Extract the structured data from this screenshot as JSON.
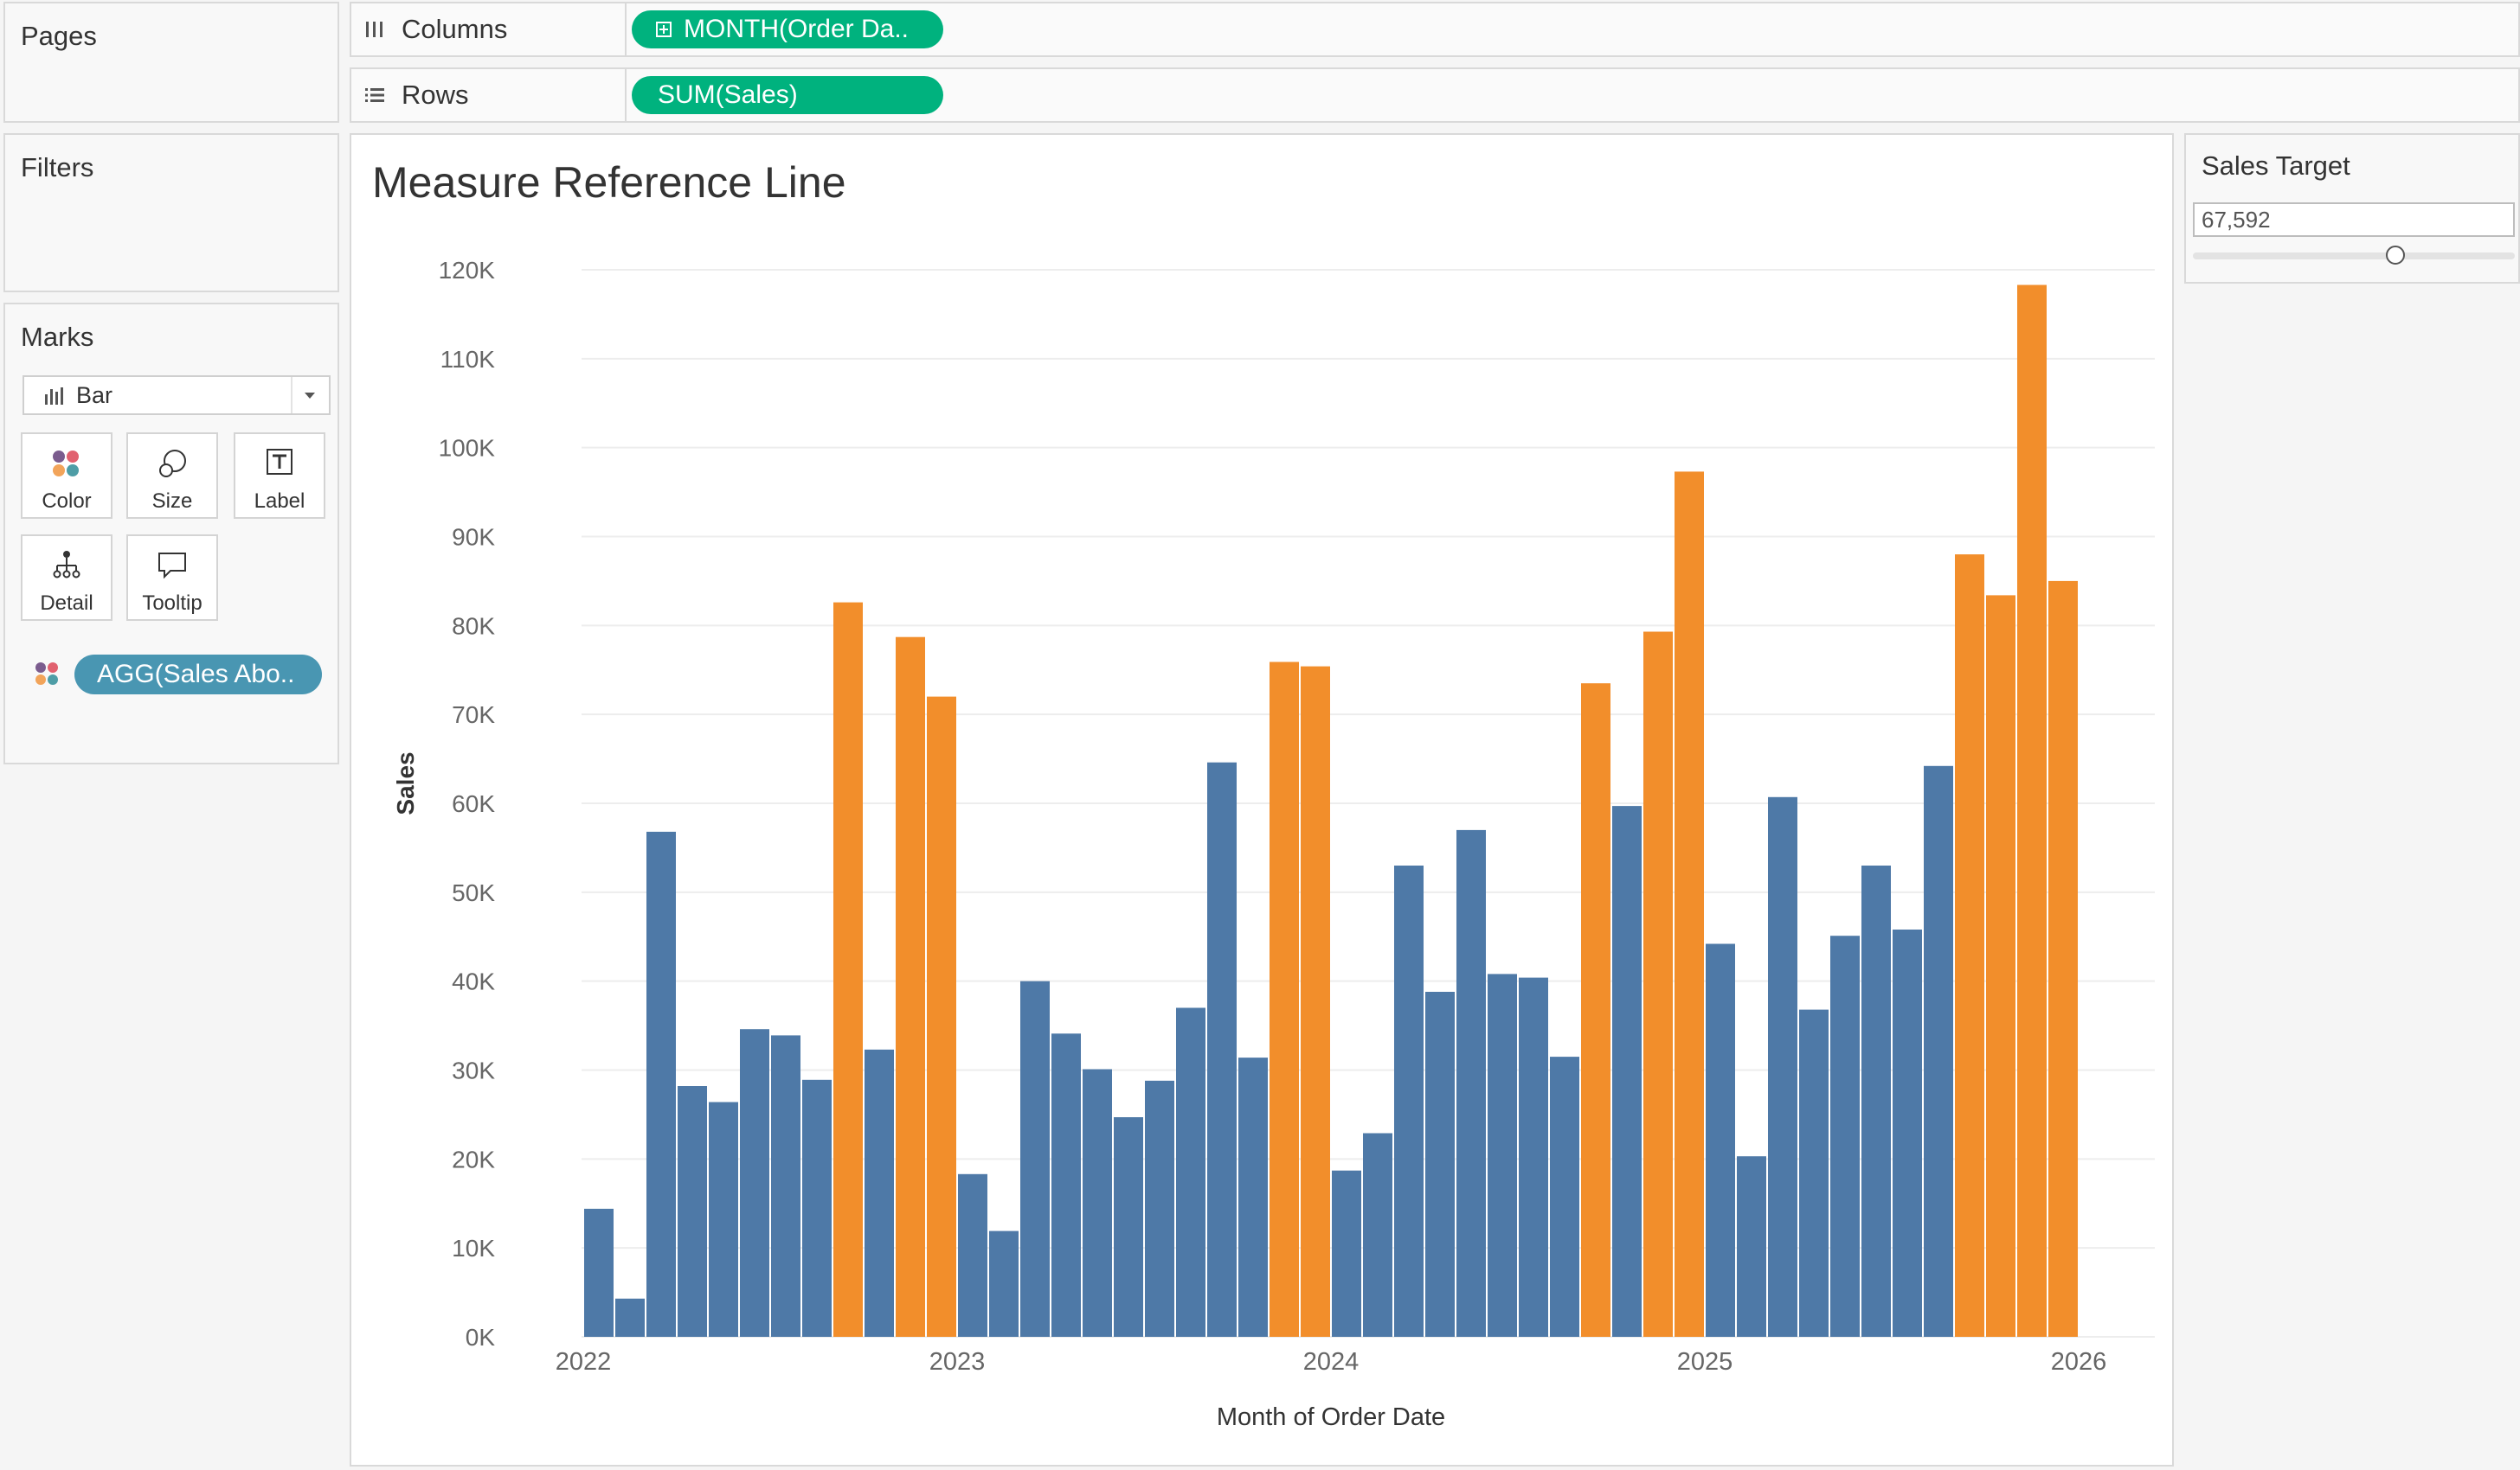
{
  "pages_panel": {
    "title": "Pages"
  },
  "filters_panel": {
    "title": "Filters"
  },
  "columns_shelf": {
    "label": "Columns",
    "pill": "MONTH(Order Da.."
  },
  "rows_shelf": {
    "label": "Rows",
    "pill": "SUM(Sales)"
  },
  "marks_card": {
    "title": "Marks",
    "mark_type": "Bar",
    "buttons": {
      "color": "Color",
      "size": "Size",
      "label": "Label",
      "detail": "Detail",
      "tooltip": "Tooltip"
    },
    "color_pill": "AGG(Sales Abo.."
  },
  "parameter": {
    "title": "Sales Target",
    "value": "67,592",
    "slider_fraction": 0.63
  },
  "colors": {
    "below": "#4e79a7",
    "above": "#f28e2b",
    "pill_green": "#00b27e",
    "pill_blue": "#4996b2"
  },
  "chart_data": {
    "type": "bar",
    "title": "Measure Reference Line",
    "xlabel": "Month of Order Date",
    "ylabel": "Sales",
    "ylim": [
      0,
      120000
    ],
    "yticks": [
      "0K",
      "10K",
      "20K",
      "30K",
      "40K",
      "50K",
      "60K",
      "70K",
      "80K",
      "90K",
      "100K",
      "110K",
      "120K"
    ],
    "xticks": [
      "2022",
      "2023",
      "2024",
      "2025",
      "2026"
    ],
    "sales_target": 67592,
    "months": [
      "Jan 2022",
      "Feb 2022",
      "Mar 2022",
      "Apr 2022",
      "May 2022",
      "Jun 2022",
      "Jul 2022",
      "Aug 2022",
      "Sep 2022",
      "Oct 2022",
      "Nov 2022",
      "Dec 2022",
      "Jan 2023",
      "Feb 2023",
      "Mar 2023",
      "Apr 2023",
      "May 2023",
      "Jun 2023",
      "Jul 2023",
      "Aug 2023",
      "Sep 2023",
      "Oct 2023",
      "Nov 2023",
      "Dec 2023",
      "Jan 2024",
      "Feb 2024",
      "Mar 2024",
      "Apr 2024",
      "May 2024",
      "Jun 2024",
      "Jul 2024",
      "Aug 2024",
      "Sep 2024",
      "Oct 2024",
      "Nov 2024",
      "Dec 2024",
      "Jan 2025",
      "Feb 2025",
      "Mar 2025",
      "Apr 2025",
      "May 2025",
      "Jun 2025",
      "Jul 2025",
      "Aug 2025",
      "Sep 2025",
      "Oct 2025",
      "Nov 2025",
      "Dec 2025"
    ],
    "values": [
      14400,
      4300,
      56800,
      28200,
      26400,
      34600,
      33900,
      28900,
      82600,
      32300,
      78700,
      72000,
      18300,
      11900,
      40000,
      34100,
      30100,
      24700,
      28800,
      37000,
      64600,
      31400,
      75900,
      75400,
      18700,
      22900,
      53000,
      38800,
      57000,
      40800,
      40400,
      31500,
      73500,
      59700,
      79300,
      97300,
      44200,
      20300,
      60700,
      36800,
      45100,
      53000,
      45800,
      64200,
      88000,
      83400,
      118300,
      85000
    ]
  }
}
